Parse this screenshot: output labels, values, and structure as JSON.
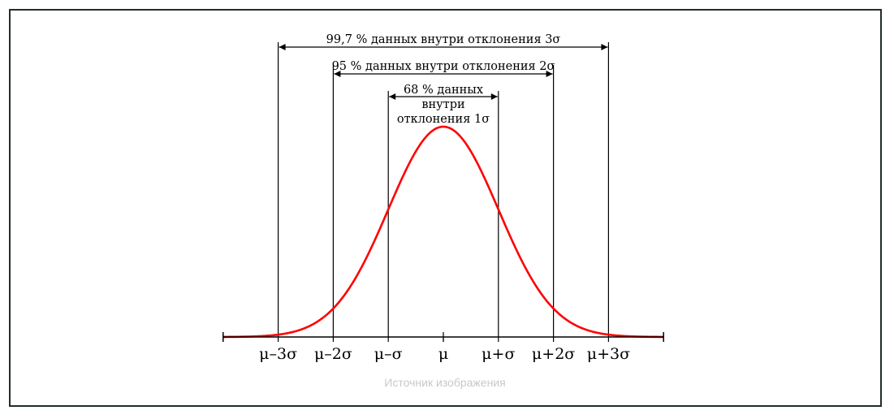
{
  "caption": "Источник изображения",
  "colors": {
    "curve": "#ff0000",
    "lines": "#000000",
    "caption": "#c8c8c8",
    "frame": "#1f2d2d"
  },
  "chart_data": {
    "type": "line",
    "curve": "normal distribution",
    "mean": 0,
    "sd": 1,
    "xlim": [
      -4,
      4
    ],
    "ticks": [
      {
        "x": -3,
        "label": "μ–3σ"
      },
      {
        "x": -2,
        "label": "μ–2σ"
      },
      {
        "x": -1,
        "label": "μ–σ"
      },
      {
        "x": 0,
        "label": "μ"
      },
      {
        "x": 1,
        "label": "μ+σ"
      },
      {
        "x": 2,
        "label": "μ+2σ"
      },
      {
        "x": 3,
        "label": "μ+3σ"
      }
    ],
    "intervals": [
      {
        "k": 3,
        "label": "99,7 % данных внутри отклонения 3σ"
      },
      {
        "k": 2,
        "label": "95 % данных внутри отклонения 2σ"
      },
      {
        "k": 1,
        "label_lines": [
          "68 % данных",
          "внутри",
          "отклонения 1σ"
        ]
      }
    ]
  }
}
